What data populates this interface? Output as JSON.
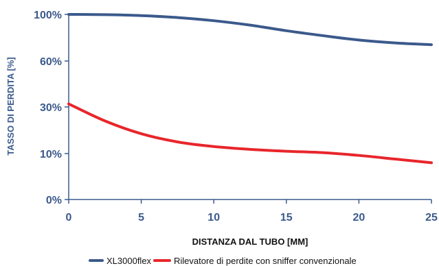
{
  "chart_data": {
    "type": "line",
    "xlabel": "DISTANZA DAL TUBO [MM]",
    "ylabel": "TASSO DI PERDITA [%]",
    "x_ticks": [
      "0",
      "5",
      "10",
      "15",
      "20",
      "25"
    ],
    "y_ticks": [
      "0%",
      "10%",
      "30%",
      "60%",
      "100%"
    ],
    "xlim": [
      0,
      25
    ],
    "grid": false,
    "legend_position": "bottom",
    "series": [
      {
        "name": "XL3000flex",
        "color": "#3b5a8c",
        "points": [
          [
            0,
            100
          ],
          [
            2.5,
            99.8
          ],
          [
            5,
            99.0
          ],
          [
            7.5,
            97.3
          ],
          [
            10,
            94.6
          ],
          [
            12.5,
            90.8
          ],
          [
            15,
            86.0
          ],
          [
            17.5,
            81.8
          ],
          [
            20,
            78.0
          ],
          [
            22.5,
            75.5
          ],
          [
            25,
            74.0
          ]
        ]
      },
      {
        "name": "Rilevatore di perdite con sniffer convenzionale",
        "color": "#e8262b",
        "points": [
          [
            0,
            32
          ],
          [
            2.5,
            24
          ],
          [
            5,
            18.5
          ],
          [
            7.5,
            15
          ],
          [
            10,
            13
          ],
          [
            12.5,
            11.8
          ],
          [
            15,
            11
          ],
          [
            17.5,
            10.4
          ],
          [
            20,
            9.6
          ],
          [
            22.5,
            8.8
          ],
          [
            25,
            8
          ]
        ]
      }
    ]
  }
}
